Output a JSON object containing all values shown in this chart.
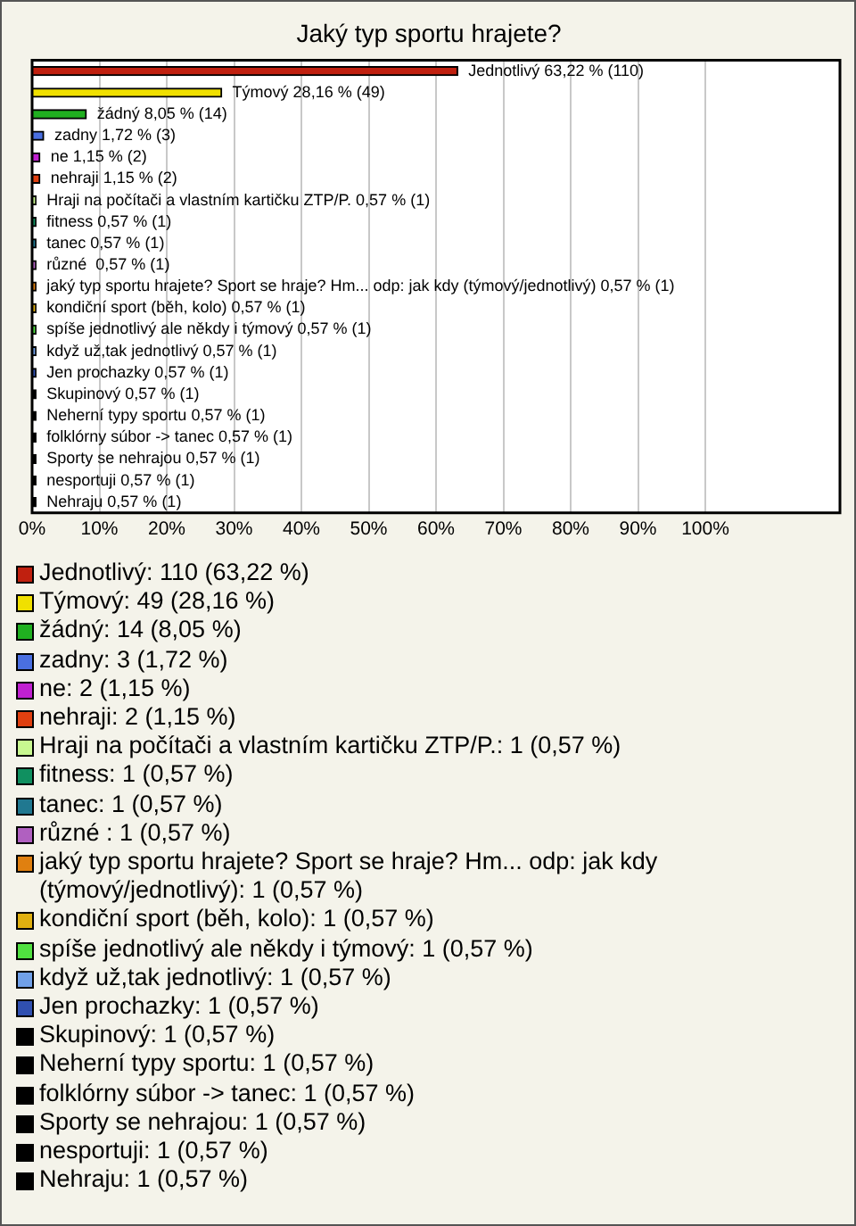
{
  "chart_data": {
    "type": "bar",
    "orientation": "horizontal",
    "title": "Jaký typ sportu hrajete?",
    "categories": [
      "Jednotlivý",
      "Týmový",
      "žádný",
      "zadny",
      "ne",
      "nehraji",
      "Hraji na počítači a vlastním kartičku ZTP/P.",
      "fitness",
      "tanec",
      "různé ",
      "jaký typ sportu hrajete? Sport se hraje? Hm... odp: jak kdy (týmový/jednotlivý)",
      "kondiční sport (běh, kolo)",
      "spíše jednotlivý ale někdy i týmový",
      "když už,tak jednotlivý",
      "Jen prochazky",
      "Skupinový",
      "Neherní typy sportu",
      "folklórny súbor -> tanec",
      "Sporty se nehrajou",
      "nesportuji",
      "Nehraju"
    ],
    "values": [
      63.22,
      28.16,
      8.05,
      1.72,
      1.15,
      1.15,
      0.57,
      0.57,
      0.57,
      0.57,
      0.57,
      0.57,
      0.57,
      0.57,
      0.57,
      0.57,
      0.57,
      0.57,
      0.57,
      0.57,
      0.57
    ],
    "value_labels": [
      "63,22 % (110)",
      "28,16 % (49)",
      "8,05 % (14)",
      "1,72 % (3)",
      "1,15 % (2)",
      "1,15 % (2)",
      "0,57 % (1)",
      "0,57 % (1)",
      "0,57 % (1)",
      "0,57 % (1)",
      "0,57 % (1)",
      "0,57 % (1)",
      "0,57 % (1)",
      "0,57 % (1)",
      "0,57 % (1)",
      "0,57 % (1)",
      "0,57 % (1)",
      "0,57 % (1)",
      "0,57 % (1)",
      "0,57 % (1)",
      "0,57 % (1)"
    ],
    "colors": [
      "#c0200f",
      "#f0e000",
      "#20b020",
      "#4a6fe0",
      "#c020d0",
      "#e04010",
      "#c8f890",
      "#109060",
      "#207890",
      "#b060c0",
      "#e08010",
      "#e0b010",
      "#50e040",
      "#70a0e8",
      "#3050b0",
      "#000000",
      "#000000",
      "#000000",
      "#000000",
      "#000000",
      "#000000"
    ],
    "xlim": [
      0,
      120
    ],
    "xticks": [
      {
        "value": 0,
        "label": "0%"
      },
      {
        "value": 10,
        "label": "10%"
      },
      {
        "value": 20,
        "label": "20%"
      },
      {
        "value": 30,
        "label": "30%"
      },
      {
        "value": 40,
        "label": "40%"
      },
      {
        "value": 50,
        "label": "50%"
      },
      {
        "value": 60,
        "label": "60%"
      },
      {
        "value": 70,
        "label": "70%"
      },
      {
        "value": 80,
        "label": "80%"
      },
      {
        "value": 90,
        "label": "90%"
      },
      {
        "value": 100,
        "label": "100%"
      }
    ],
    "grid": "x",
    "tick_labels": "x",
    "annotations": [
      "Jednotlivý: 110 (63,22 %)",
      "Týmový: 49 (28,16 %)",
      "žádný: 14 (8,05 %)",
      "zadny: 3 (1,72 %)",
      "ne: 2 (1,15 %)",
      "nehraji: 2 (1,15 %)",
      "Hraji na počítači a vlastním kartičku ZTP/P.: 1 (0,57 %)",
      "fitness: 1 (0,57 %)",
      "tanec: 1 (0,57 %)",
      "různé : 1 (0,57 %)",
      "jaký typ sportu hrajete? Sport se hraje? Hm... odp: jak kdy (týmový/jednotlivý): 1 (0,57 %)",
      "kondiční sport (běh, kolo): 1 (0,57 %)",
      "spíše jednotlivý ale někdy i týmový: 1 (0,57 %)",
      "když už,tak jednotlivý: 1 (0,57 %)",
      "Jen prochazky: 1 (0,57 %)",
      "Skupinový: 1 (0,57 %)",
      "Neherní typy sportu: 1 (0,57 %)",
      "folklórny súbor -> tanec: 1 (0,57 %)",
      "Sporty se nehrajou: 1 (0,57 %)",
      "nesportuji: 1 (0,57 %)",
      "Nehraju: 1 (0,57 %)"
    ]
  }
}
